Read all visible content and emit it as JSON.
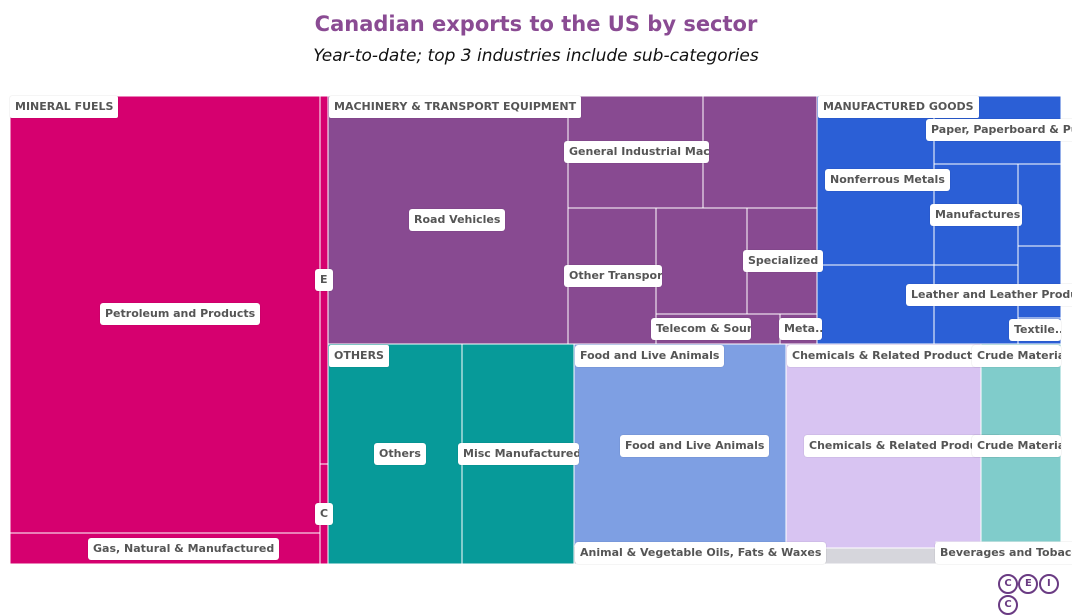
{
  "header": {
    "title": "Canadian exports to the US by sector",
    "subtitle": "Year-to-date; top 3 industries include sub-categories"
  },
  "logo": {
    "letters": [
      "C",
      "E",
      "I",
      "C"
    ]
  },
  "colors": {
    "mineral_fuels": "#d6006f",
    "machinery": "#884a91",
    "manufactured": "#2b5fd6",
    "others": "#079a99",
    "food": "#7e9fe3",
    "chemicals": "#d8c4f2",
    "crude": "#80cccb",
    "oils": "#cdcdd6",
    "beverages": "#d6d6dc"
  },
  "chart_data": {
    "type": "treemap",
    "title": "Canadian exports to the US by sector",
    "subtitle": "Year-to-date; top 3 industries include sub-categories",
    "groups": [
      {
        "name": "MINERAL FUELS",
        "children": [
          "Petroleum and Products",
          "Gas, Natural & Manufactured",
          "E",
          "C"
        ]
      },
      {
        "name": "MACHINERY & TRANSPORT EQUIPMENT",
        "children": [
          "Road Vehicles",
          "General Industrial Machi...",
          "Other Transport...",
          "Specialized ...",
          "Telecom & Soun...",
          "Meta..."
        ]
      },
      {
        "name": "MANUFACTURED GOODS",
        "children": [
          "Paper, Paperboard & Pulp",
          "Nonferrous Metals",
          "Manufactures ...",
          "Leather and Leather Products",
          "Textile..."
        ]
      },
      {
        "name": "OTHERS",
        "children": [
          "Others",
          "Misc Manufactured ..."
        ]
      },
      {
        "name": "Food and Live Animals",
        "children": [
          "Food and Live Animals"
        ]
      },
      {
        "name": "Chemicals & Related Products",
        "children": [
          "Chemicals & Related Products"
        ]
      },
      {
        "name": "Crude Materia...",
        "children": [
          "Crude Materia..."
        ]
      },
      {
        "name": "Animal & Vegetable Oils, Fats & Waxes",
        "children": []
      },
      {
        "name": "Beverages and Tobacco",
        "children": []
      }
    ]
  }
}
